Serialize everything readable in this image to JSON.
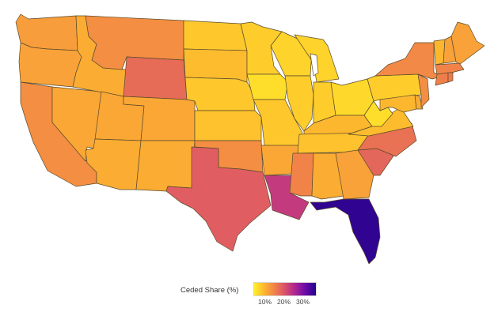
{
  "legend": {
    "title": "Ceded Share (%)",
    "ticks": [
      "10%",
      "20%",
      "30%"
    ],
    "gradient": [
      "#ffef29",
      "#fdb52f",
      "#f0804a",
      "#d9506a",
      "#ab2494",
      "#6a0aa8",
      "#22038a"
    ]
  },
  "scale": {
    "min_percent": 5,
    "max_percent": 36
  },
  "states": [
    {
      "id": "WA",
      "value": 12.5
    },
    {
      "id": "OR",
      "value": 12.0
    },
    {
      "id": "CA",
      "value": 14.0
    },
    {
      "id": "NV",
      "value": 11.5
    },
    {
      "id": "ID",
      "value": 11.0
    },
    {
      "id": "MT",
      "value": 14.0
    },
    {
      "id": "WY",
      "value": 17.5
    },
    {
      "id": "UT",
      "value": 11.5
    },
    {
      "id": "AZ",
      "value": 11.0
    },
    {
      "id": "CO",
      "value": 11.5
    },
    {
      "id": "NM",
      "value": 11.0
    },
    {
      "id": "ND",
      "value": 8.5
    },
    {
      "id": "SD",
      "value": 9.5
    },
    {
      "id": "NE",
      "value": 8.5
    },
    {
      "id": "KS",
      "value": 9.0
    },
    {
      "id": "OK",
      "value": 14.0
    },
    {
      "id": "TX",
      "value": 19.0
    },
    {
      "id": "MN",
      "value": 8.0
    },
    {
      "id": "IA",
      "value": 6.5
    },
    {
      "id": "MO",
      "value": 8.5
    },
    {
      "id": "AR",
      "value": 11.5
    },
    {
      "id": "LA",
      "value": 23.0
    },
    {
      "id": "WI",
      "value": 7.5
    },
    {
      "id": "IL",
      "value": 8.0
    },
    {
      "id": "MI",
      "value": 7.5
    },
    {
      "id": "IN",
      "value": 8.0
    },
    {
      "id": "OH",
      "value": 7.0
    },
    {
      "id": "KY",
      "value": 10.0
    },
    {
      "id": "TN",
      "value": 9.0
    },
    {
      "id": "MS",
      "value": 15.0
    },
    {
      "id": "AL",
      "value": 11.0
    },
    {
      "id": "GA",
      "value": 12.0
    },
    {
      "id": "FL",
      "value": 35.0
    },
    {
      "id": "SC",
      "value": 18.0
    },
    {
      "id": "NC",
      "value": 17.0
    },
    {
      "id": "VA",
      "value": 9.5
    },
    {
      "id": "WV",
      "value": 6.5
    },
    {
      "id": "PA",
      "value": 8.0
    },
    {
      "id": "NY",
      "value": 14.5
    },
    {
      "id": "NJ",
      "value": 14.0
    },
    {
      "id": "DE",
      "value": 11.0
    },
    {
      "id": "MD",
      "value": 10.0
    },
    {
      "id": "CT",
      "value": 15.5
    },
    {
      "id": "RI",
      "value": 16.0
    },
    {
      "id": "MA",
      "value": 15.0
    },
    {
      "id": "VT",
      "value": 10.0
    },
    {
      "id": "NH",
      "value": 12.0
    },
    {
      "id": "ME",
      "value": 12.0
    }
  ]
}
